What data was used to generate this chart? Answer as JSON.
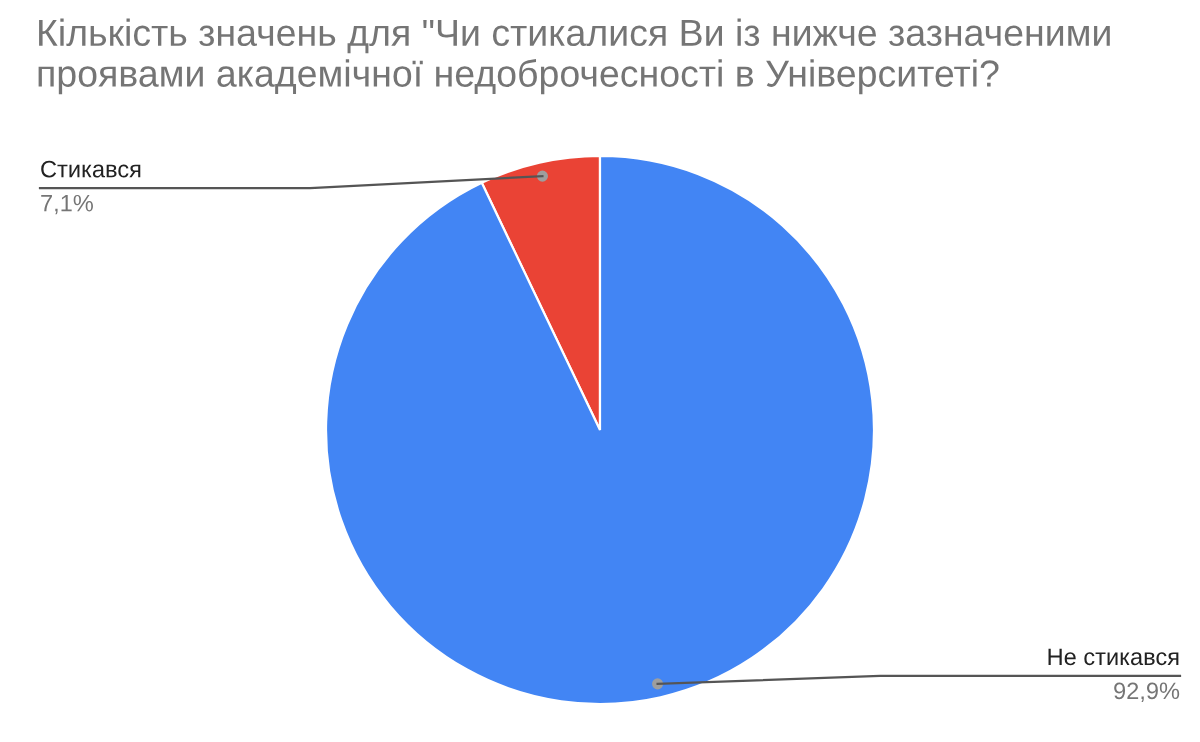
{
  "chart_data": {
    "type": "pie",
    "title": "Кількість значень для \"Чи стикалися Ви із нижче зазначеними проявами академічної недоброчесності в Університеті?",
    "categories": [
      "Стикався",
      "Не стикався"
    ],
    "values": [
      7.1,
      92.9
    ],
    "colors": [
      "#ea4335",
      "#4285f4"
    ],
    "value_labels": [
      "7,1%",
      "92,9%"
    ],
    "legend": false
  }
}
